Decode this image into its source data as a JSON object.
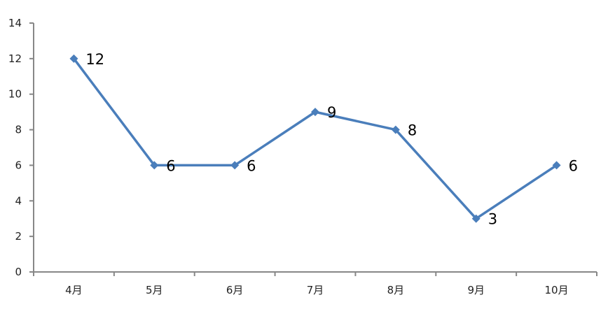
{
  "chart_data": {
    "type": "line",
    "categories": [
      "4月",
      "5月",
      "6月",
      "7月",
      "8月",
      "9月",
      "10月"
    ],
    "series": [
      {
        "values": [
          12,
          6,
          6,
          9,
          8,
          3,
          6
        ],
        "color": "#4a7ebb"
      }
    ],
    "data_labels": [
      "12",
      "6",
      "6",
      "9",
      "8",
      "3",
      "6"
    ],
    "yticks": [
      "0",
      "2",
      "4",
      "6",
      "8",
      "10",
      "12",
      "14"
    ],
    "ylim": [
      0,
      14
    ],
    "grid": false,
    "axis_color": "#878787",
    "marker": "diamond"
  }
}
